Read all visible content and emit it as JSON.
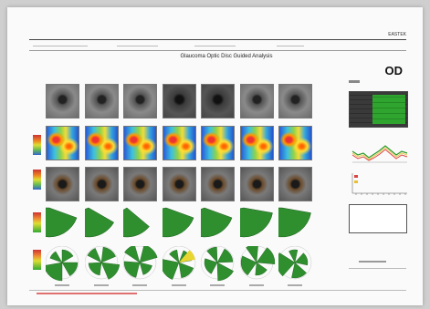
{
  "document": {
    "brand": "EASTEK",
    "title": "Glaucoma Optic Disc Guided Analysis",
    "eye": "OD"
  }
}
